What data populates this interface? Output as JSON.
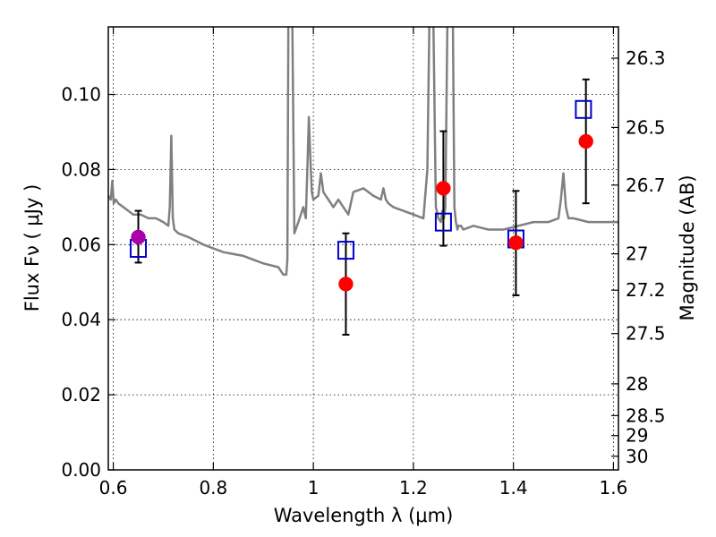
{
  "chart_data": {
    "type": "scatter",
    "xlabel": "Wavelength  λ (μm)",
    "ylabel": "Flux  Fν  ( μJy )",
    "ylabel_right": "Magnitude (AB)",
    "xlim": [
      0.59,
      1.61
    ],
    "ylim": [
      0.0,
      0.118
    ],
    "x_ticks": [
      0.6,
      0.8,
      1.0,
      1.2,
      1.4,
      1.6
    ],
    "x_tick_labels": [
      "0.6",
      "0.8",
      "1",
      "1.2",
      "1.4",
      "1.6"
    ],
    "y_ticks": [
      0.0,
      0.02,
      0.04,
      0.06,
      0.08,
      0.1
    ],
    "y_tick_labels": [
      "0.00",
      "0.02",
      "0.04",
      "0.06",
      "0.08",
      "0.10"
    ],
    "mag_ticks": [
      26.3,
      26.5,
      26.7,
      27,
      27.2,
      27.5,
      28,
      28.5,
      29,
      30
    ],
    "mag_tick_labels": [
      "26.3",
      "26.5",
      "26.7",
      "27",
      "27.2",
      "27.5",
      "28",
      "28.5",
      "29",
      "30"
    ],
    "grid": true,
    "model_spectrum": {
      "color": "#808080",
      "x": [
        0.59,
        0.595,
        0.598,
        0.601,
        0.605,
        0.61,
        0.62,
        0.63,
        0.64,
        0.655,
        0.67,
        0.685,
        0.7,
        0.71,
        0.713,
        0.716,
        0.719,
        0.722,
        0.73,
        0.75,
        0.78,
        0.82,
        0.86,
        0.9,
        0.93,
        0.94,
        0.946,
        0.948,
        0.95,
        0.952,
        0.955,
        0.958,
        0.962,
        0.97,
        0.98,
        0.985,
        0.988,
        0.991,
        0.994,
        0.997,
        1.0,
        1.01,
        1.015,
        1.02,
        1.025,
        1.03,
        1.04,
        1.05,
        1.06,
        1.07,
        1.08,
        1.1,
        1.12,
        1.135,
        1.14,
        1.145,
        1.15,
        1.16,
        1.18,
        1.2,
        1.22,
        1.228,
        1.232,
        1.236,
        1.24,
        1.245,
        1.25,
        1.255,
        1.258,
        1.261,
        1.264,
        1.268,
        1.27,
        1.273,
        1.276,
        1.279,
        1.282,
        1.285,
        1.288,
        1.29,
        1.295,
        1.3,
        1.32,
        1.35,
        1.38,
        1.41,
        1.44,
        1.47,
        1.49,
        1.495,
        1.5,
        1.505,
        1.51,
        1.52,
        1.55,
        1.58,
        1.61
      ],
      "y": [
        0.073,
        0.072,
        0.077,
        0.071,
        0.072,
        0.071,
        0.07,
        0.069,
        0.068,
        0.068,
        0.067,
        0.067,
        0.066,
        0.065,
        0.07,
        0.089,
        0.067,
        0.064,
        0.063,
        0.062,
        0.06,
        0.058,
        0.057,
        0.055,
        0.054,
        0.052,
        0.052,
        0.056,
        0.12,
        0.12,
        0.12,
        0.12,
        0.063,
        0.066,
        0.07,
        0.067,
        0.08,
        0.094,
        0.083,
        0.074,
        0.072,
        0.073,
        0.079,
        0.074,
        0.073,
        0.072,
        0.07,
        0.072,
        0.07,
        0.068,
        0.074,
        0.075,
        0.073,
        0.072,
        0.075,
        0.072,
        0.071,
        0.07,
        0.069,
        0.068,
        0.067,
        0.08,
        0.12,
        0.12,
        0.12,
        0.07,
        0.067,
        0.066,
        0.069,
        0.067,
        0.07,
        0.12,
        0.12,
        0.12,
        0.12,
        0.12,
        0.07,
        0.066,
        0.064,
        0.065,
        0.065,
        0.064,
        0.065,
        0.064,
        0.064,
        0.065,
        0.066,
        0.066,
        0.067,
        0.072,
        0.079,
        0.07,
        0.067,
        0.067,
        0.066,
        0.066,
        0.066
      ]
    },
    "series": [
      {
        "marker": "square-open",
        "color": "#0000cc",
        "x": [
          0.65,
          1.065,
          1.26,
          1.405,
          1.54
        ],
        "y": [
          0.059,
          0.0585,
          0.066,
          0.0615,
          0.096
        ]
      },
      {
        "marker": "circle",
        "color": "#ff0000",
        "x": [
          1.065,
          1.26,
          1.405,
          1.545
        ],
        "y": [
          0.0495,
          0.075,
          0.0605,
          0.0875
        ],
        "yerr_low": [
          0.036,
          0.0597,
          0.0465,
          0.071
        ],
        "yerr_high": [
          0.063,
          0.0902,
          0.0743,
          0.104
        ]
      },
      {
        "marker": "circle",
        "color": "#aa00aa",
        "x": [
          0.65
        ],
        "y": [
          0.062
        ],
        "yerr_low": [
          0.0552
        ],
        "yerr_high": [
          0.069
        ]
      }
    ]
  }
}
